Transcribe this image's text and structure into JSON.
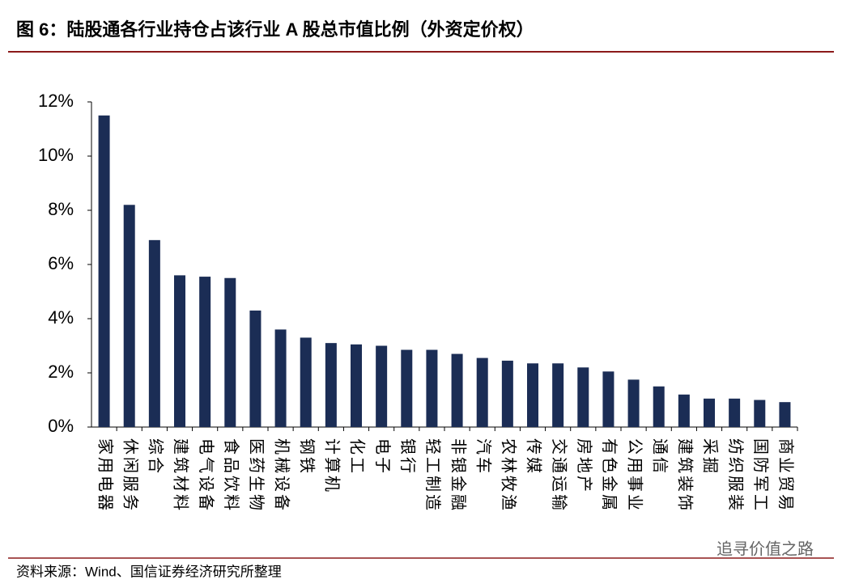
{
  "chart_data": {
    "type": "bar",
    "title": "图 6：陆股通各行业持仓占该行业 A 股总市值比例（外资定价权）",
    "source": "资料来源：Wind、国信证券经济研究所整理",
    "watermark": "追寻价值之路",
    "categories": [
      "家用电器",
      "休闲服务",
      "综合",
      "建筑材料",
      "电气设备",
      "食品饮料",
      "医药生物",
      "机械设备",
      "钢铁",
      "计算机",
      "化工",
      "电子",
      "银行",
      "轻工制造",
      "非银金融",
      "汽车",
      "农林牧渔",
      "传媒",
      "交通运输",
      "房地产",
      "有色金属",
      "公用事业",
      "通信",
      "建筑装饰",
      "采掘",
      "纺织服装",
      "国防军工",
      "商业贸易"
    ],
    "values": [
      11.5,
      8.2,
      6.9,
      5.6,
      5.55,
      5.5,
      4.3,
      3.6,
      3.3,
      3.1,
      3.05,
      3.0,
      2.85,
      2.85,
      2.7,
      2.55,
      2.45,
      2.35,
      2.35,
      2.2,
      2.05,
      1.75,
      1.5,
      1.2,
      1.05,
      1.05,
      1.0,
      0.92
    ],
    "color": "#1b2d55",
    "ylim": [
      0,
      12
    ],
    "yticks": [
      {
        "value": 0,
        "label": "0%"
      },
      {
        "value": 2,
        "label": "2%"
      },
      {
        "value": 4,
        "label": "4%"
      },
      {
        "value": 6,
        "label": "6%"
      },
      {
        "value": 8,
        "label": "8%"
      },
      {
        "value": 10,
        "label": "10%"
      },
      {
        "value": 12,
        "label": "12%"
      }
    ],
    "grid": false
  }
}
